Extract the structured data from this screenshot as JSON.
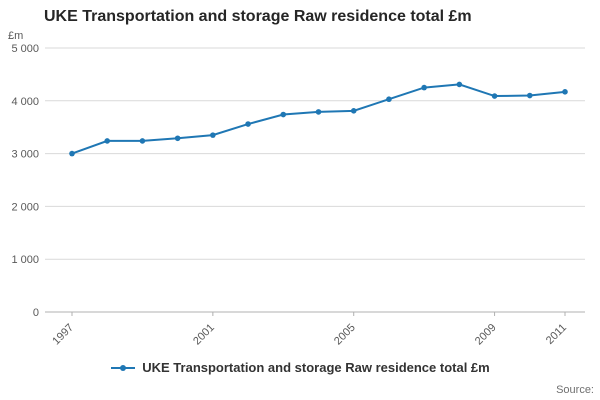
{
  "title": "UKE Transportation and storage Raw residence total £m",
  "y_axis_unit": "£m",
  "legend": {
    "label": "UKE Transportation and storage Raw residence total £m"
  },
  "source_label": "Source:",
  "colors": {
    "line": "#1f77b4",
    "grid": "#d9d9d9",
    "axis": "#b0b0b0",
    "text": "#595959"
  },
  "chart_data": {
    "type": "line",
    "title": "UKE Transportation and storage Raw residence total £m",
    "xlabel": "",
    "ylabel": "£m",
    "x": [
      1997,
      1998,
      1999,
      2000,
      2001,
      2002,
      2003,
      2004,
      2005,
      2006,
      2007,
      2008,
      2009,
      2010,
      2011
    ],
    "series": [
      {
        "name": "UKE Transportation and storage Raw residence total £m",
        "values": [
          3000,
          3240,
          3240,
          3290,
          3350,
          3560,
          3740,
          3790,
          3810,
          4030,
          4250,
          4310,
          4090,
          4100,
          4170
        ]
      }
    ],
    "ylim": [
      0,
      5000
    ],
    "ytick_step": 1000,
    "xticks": [
      1997,
      2001,
      2005,
      2009,
      2011
    ],
    "grid": "horizontal",
    "legend_position": "bottom",
    "marker": "point"
  }
}
